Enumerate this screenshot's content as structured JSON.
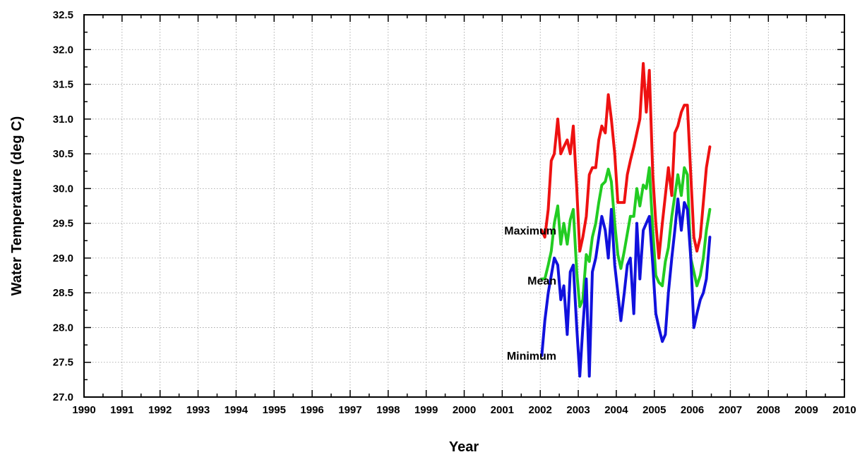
{
  "chart_data": {
    "type": "line",
    "xlabel": "Year",
    "ylabel": "Water Temperature (deg C)",
    "xlim": [
      1990,
      2010
    ],
    "ylim": [
      27.0,
      32.5
    ],
    "x_ticks": [
      "1990",
      "1991",
      "1992",
      "1993",
      "1994",
      "1995",
      "1996",
      "1997",
      "1998",
      "1999",
      "2000",
      "2001",
      "2002",
      "2003",
      "2004",
      "2005",
      "2006",
      "2007",
      "2008",
      "2009",
      "2010"
    ],
    "y_ticks": [
      "27.0",
      "27.5",
      "28.0",
      "28.5",
      "29.0",
      "29.5",
      "30.0",
      "30.5",
      "31.0",
      "31.5",
      "32.0",
      "32.5"
    ],
    "grid": true,
    "x": [
      2002.04,
      2002.12,
      2002.21,
      2002.29,
      2002.37,
      2002.46,
      2002.54,
      2002.62,
      2002.71,
      2002.79,
      2002.87,
      2002.96,
      2003.04,
      2003.12,
      2003.21,
      2003.29,
      2003.37,
      2003.46,
      2003.54,
      2003.62,
      2003.71,
      2003.79,
      2003.87,
      2003.96,
      2004.04,
      2004.12,
      2004.21,
      2004.29,
      2004.37,
      2004.46,
      2004.54,
      2004.62,
      2004.71,
      2004.79,
      2004.87,
      2004.96,
      2005.04,
      2005.12,
      2005.21,
      2005.29,
      2005.37,
      2005.46,
      2005.54,
      2005.62,
      2005.71,
      2005.79,
      2005.87,
      2005.96,
      2006.04,
      2006.12,
      2006.21,
      2006.29,
      2006.37,
      2006.46
    ],
    "series": [
      {
        "name": "Maximum",
        "color": "#ee1111",
        "values": [
          29.4,
          29.3,
          29.7,
          30.4,
          30.5,
          31.0,
          30.5,
          30.6,
          30.7,
          30.5,
          30.9,
          30.0,
          29.1,
          29.3,
          29.6,
          30.2,
          30.3,
          30.3,
          30.7,
          30.9,
          30.8,
          31.35,
          31.0,
          30.5,
          29.8,
          29.8,
          29.8,
          30.2,
          30.4,
          30.6,
          30.8,
          31.0,
          31.8,
          31.1,
          31.7,
          30.2,
          29.5,
          29.0,
          29.5,
          29.9,
          30.3,
          29.9,
          30.8,
          30.9,
          31.1,
          31.2,
          31.2,
          30.2,
          29.3,
          29.1,
          29.3,
          29.8,
          30.3,
          30.6
        ]
      },
      {
        "name": "Mean",
        "color": "#22cc22",
        "values": [
          28.7,
          28.7,
          28.9,
          29.1,
          29.5,
          29.75,
          29.2,
          29.5,
          29.2,
          29.55,
          29.7,
          28.8,
          28.3,
          28.4,
          29.05,
          28.95,
          29.3,
          29.5,
          29.8,
          30.05,
          30.1,
          30.28,
          30.1,
          29.5,
          29.05,
          28.85,
          29.1,
          29.35,
          29.6,
          29.6,
          30.0,
          29.75,
          30.05,
          30.0,
          30.3,
          29.4,
          28.75,
          28.65,
          28.6,
          28.95,
          29.15,
          29.6,
          29.9,
          30.2,
          29.9,
          30.3,
          30.2,
          29.0,
          28.8,
          28.6,
          28.75,
          29.0,
          29.4,
          29.7
        ]
      },
      {
        "name": "Minimum",
        "color": "#1111dd",
        "values": [
          27.6,
          28.1,
          28.5,
          28.75,
          29.0,
          28.9,
          28.4,
          28.6,
          27.9,
          28.8,
          28.9,
          28.0,
          27.3,
          28.0,
          28.7,
          27.3,
          28.8,
          29.0,
          29.3,
          29.6,
          29.4,
          29.0,
          29.7,
          28.9,
          28.5,
          28.1,
          28.5,
          28.9,
          29.0,
          28.2,
          29.5,
          28.7,
          29.4,
          29.5,
          29.6,
          28.9,
          28.2,
          28.0,
          27.8,
          27.9,
          28.5,
          29.0,
          29.4,
          29.85,
          29.4,
          29.8,
          29.7,
          29.0,
          28.0,
          28.2,
          28.4,
          28.5,
          28.7,
          29.3
        ]
      }
    ],
    "series_labels": [
      {
        "text": "Maximum",
        "year": 2001.7,
        "value": 29.4
      },
      {
        "text": "Mean",
        "year": 2001.7,
        "value": 28.68
      },
      {
        "text": "Minimum",
        "year": 2001.7,
        "value": 27.6
      }
    ]
  }
}
